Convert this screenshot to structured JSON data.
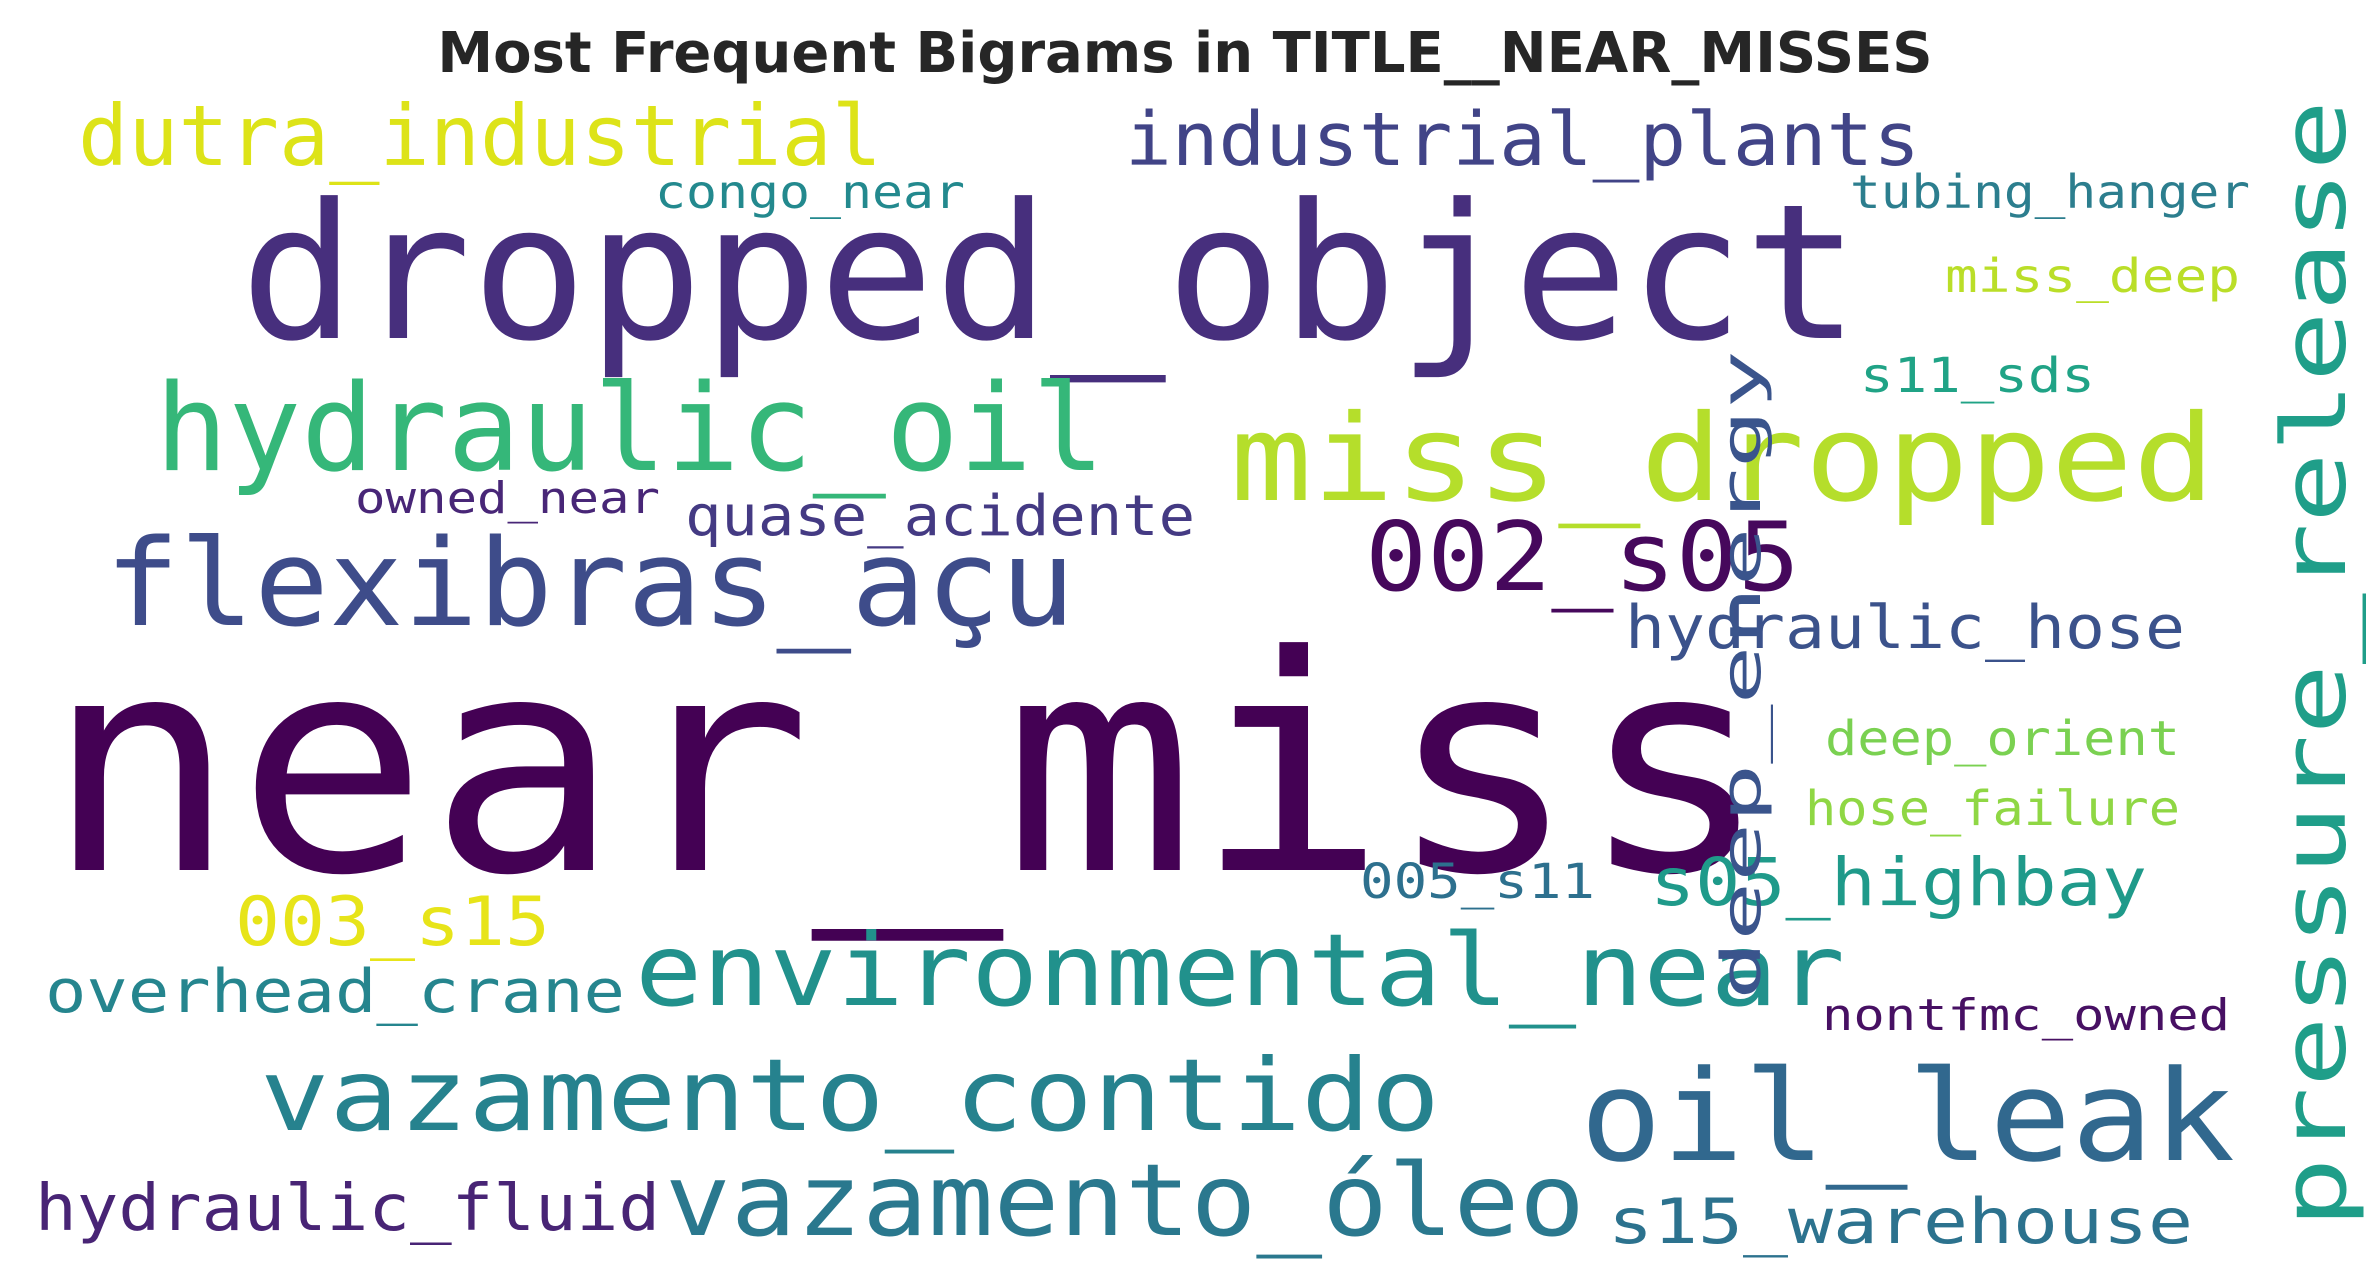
{
  "chart_data": {
    "type": "wordcloud",
    "title": "Most Frequent Bigrams in TITLE__NEAR_MISSES",
    "colormap": "viridis",
    "background": "#ffffff",
    "words": [
      {
        "text": "near_miss",
        "color": "#440154"
      },
      {
        "text": "dropped_object",
        "color": "#472f7d"
      },
      {
        "text": "miss_dropped",
        "color": "#b5de2b"
      },
      {
        "text": "hydraulic_oil",
        "color": "#35b779"
      },
      {
        "text": "flexibras_açu",
        "color": "#3e4c8a"
      },
      {
        "text": "oil_leak",
        "color": "#31688e"
      },
      {
        "text": "pressure_release",
        "color": "#1f9e89"
      },
      {
        "text": "environmental_near",
        "color": "#21918c"
      },
      {
        "text": "vazamento_contido",
        "color": "#26828e"
      },
      {
        "text": "vazamento_óleo",
        "color": "#2a788e"
      },
      {
        "text": "dutra_industrial",
        "color": "#dde318"
      },
      {
        "text": "industrial_plants",
        "color": "#414487"
      },
      {
        "text": "002_s05",
        "color": "#46085c"
      },
      {
        "text": "s15_warehouse",
        "color": "#2c728e"
      },
      {
        "text": "hydraulic_hose",
        "color": "#3b528b"
      },
      {
        "text": "s05_highbay",
        "color": "#1f9a8a"
      },
      {
        "text": "003_s15",
        "color": "#e7e419"
      },
      {
        "text": "hydraulic_fluid",
        "color": "#482475"
      },
      {
        "text": "overhead_crane",
        "color": "#25858e"
      },
      {
        "text": "quase_acidente",
        "color": "#443a83"
      },
      {
        "text": "deep_energy",
        "color": "#3a548c"
      },
      {
        "text": "tubing_hanger",
        "color": "#2c7e8e"
      },
      {
        "text": "congo_near",
        "color": "#23898e"
      },
      {
        "text": "miss_deep",
        "color": "#bade28"
      },
      {
        "text": "s11_sds",
        "color": "#20a386"
      },
      {
        "text": "deep_orient",
        "color": "#7ad151"
      },
      {
        "text": "hose_failure",
        "color": "#8fd744"
      },
      {
        "text": "005_s11",
        "color": "#2d708e"
      },
      {
        "text": "nontfmc_owned",
        "color": "#471063"
      },
      {
        "text": "owned_near",
        "color": "#482677"
      }
    ]
  }
}
